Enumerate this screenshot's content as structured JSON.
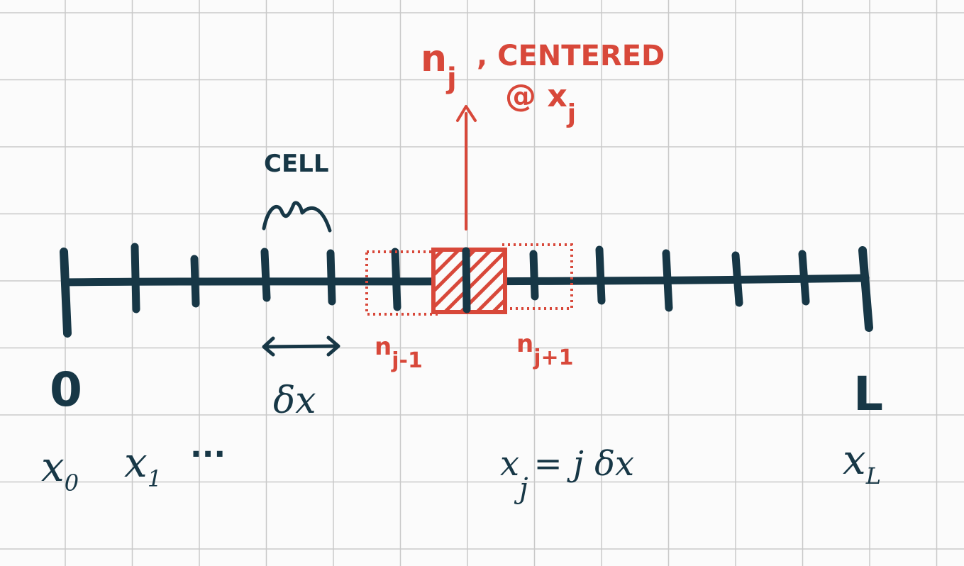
{
  "diagram": {
    "colors": {
      "background": "#fbfbfb",
      "grid": "#c9c9c9",
      "ink": "#173746",
      "highlight": "#d8483a"
    },
    "labels": {
      "origin": "0",
      "end": "L",
      "cell": "CELL",
      "spacing": "δx",
      "x0_base": "x",
      "x0_sub": "0",
      "x1_base": "x",
      "x1_sub": "1",
      "ellipsis": "···",
      "xL_base": "x",
      "xL_sub": "L",
      "xj_base": "x",
      "xj_sub": "j",
      "xj_eq": "= j δx",
      "nj_base": "n",
      "nj_sub": "j",
      "centered_line1": ", CENTERED",
      "centered_line2": "@ x",
      "centered_sub": "j",
      "njm1_base": "n",
      "njm1_sub": "j-1",
      "njp1_base": "n",
      "njp1_sub": "j+1"
    }
  }
}
